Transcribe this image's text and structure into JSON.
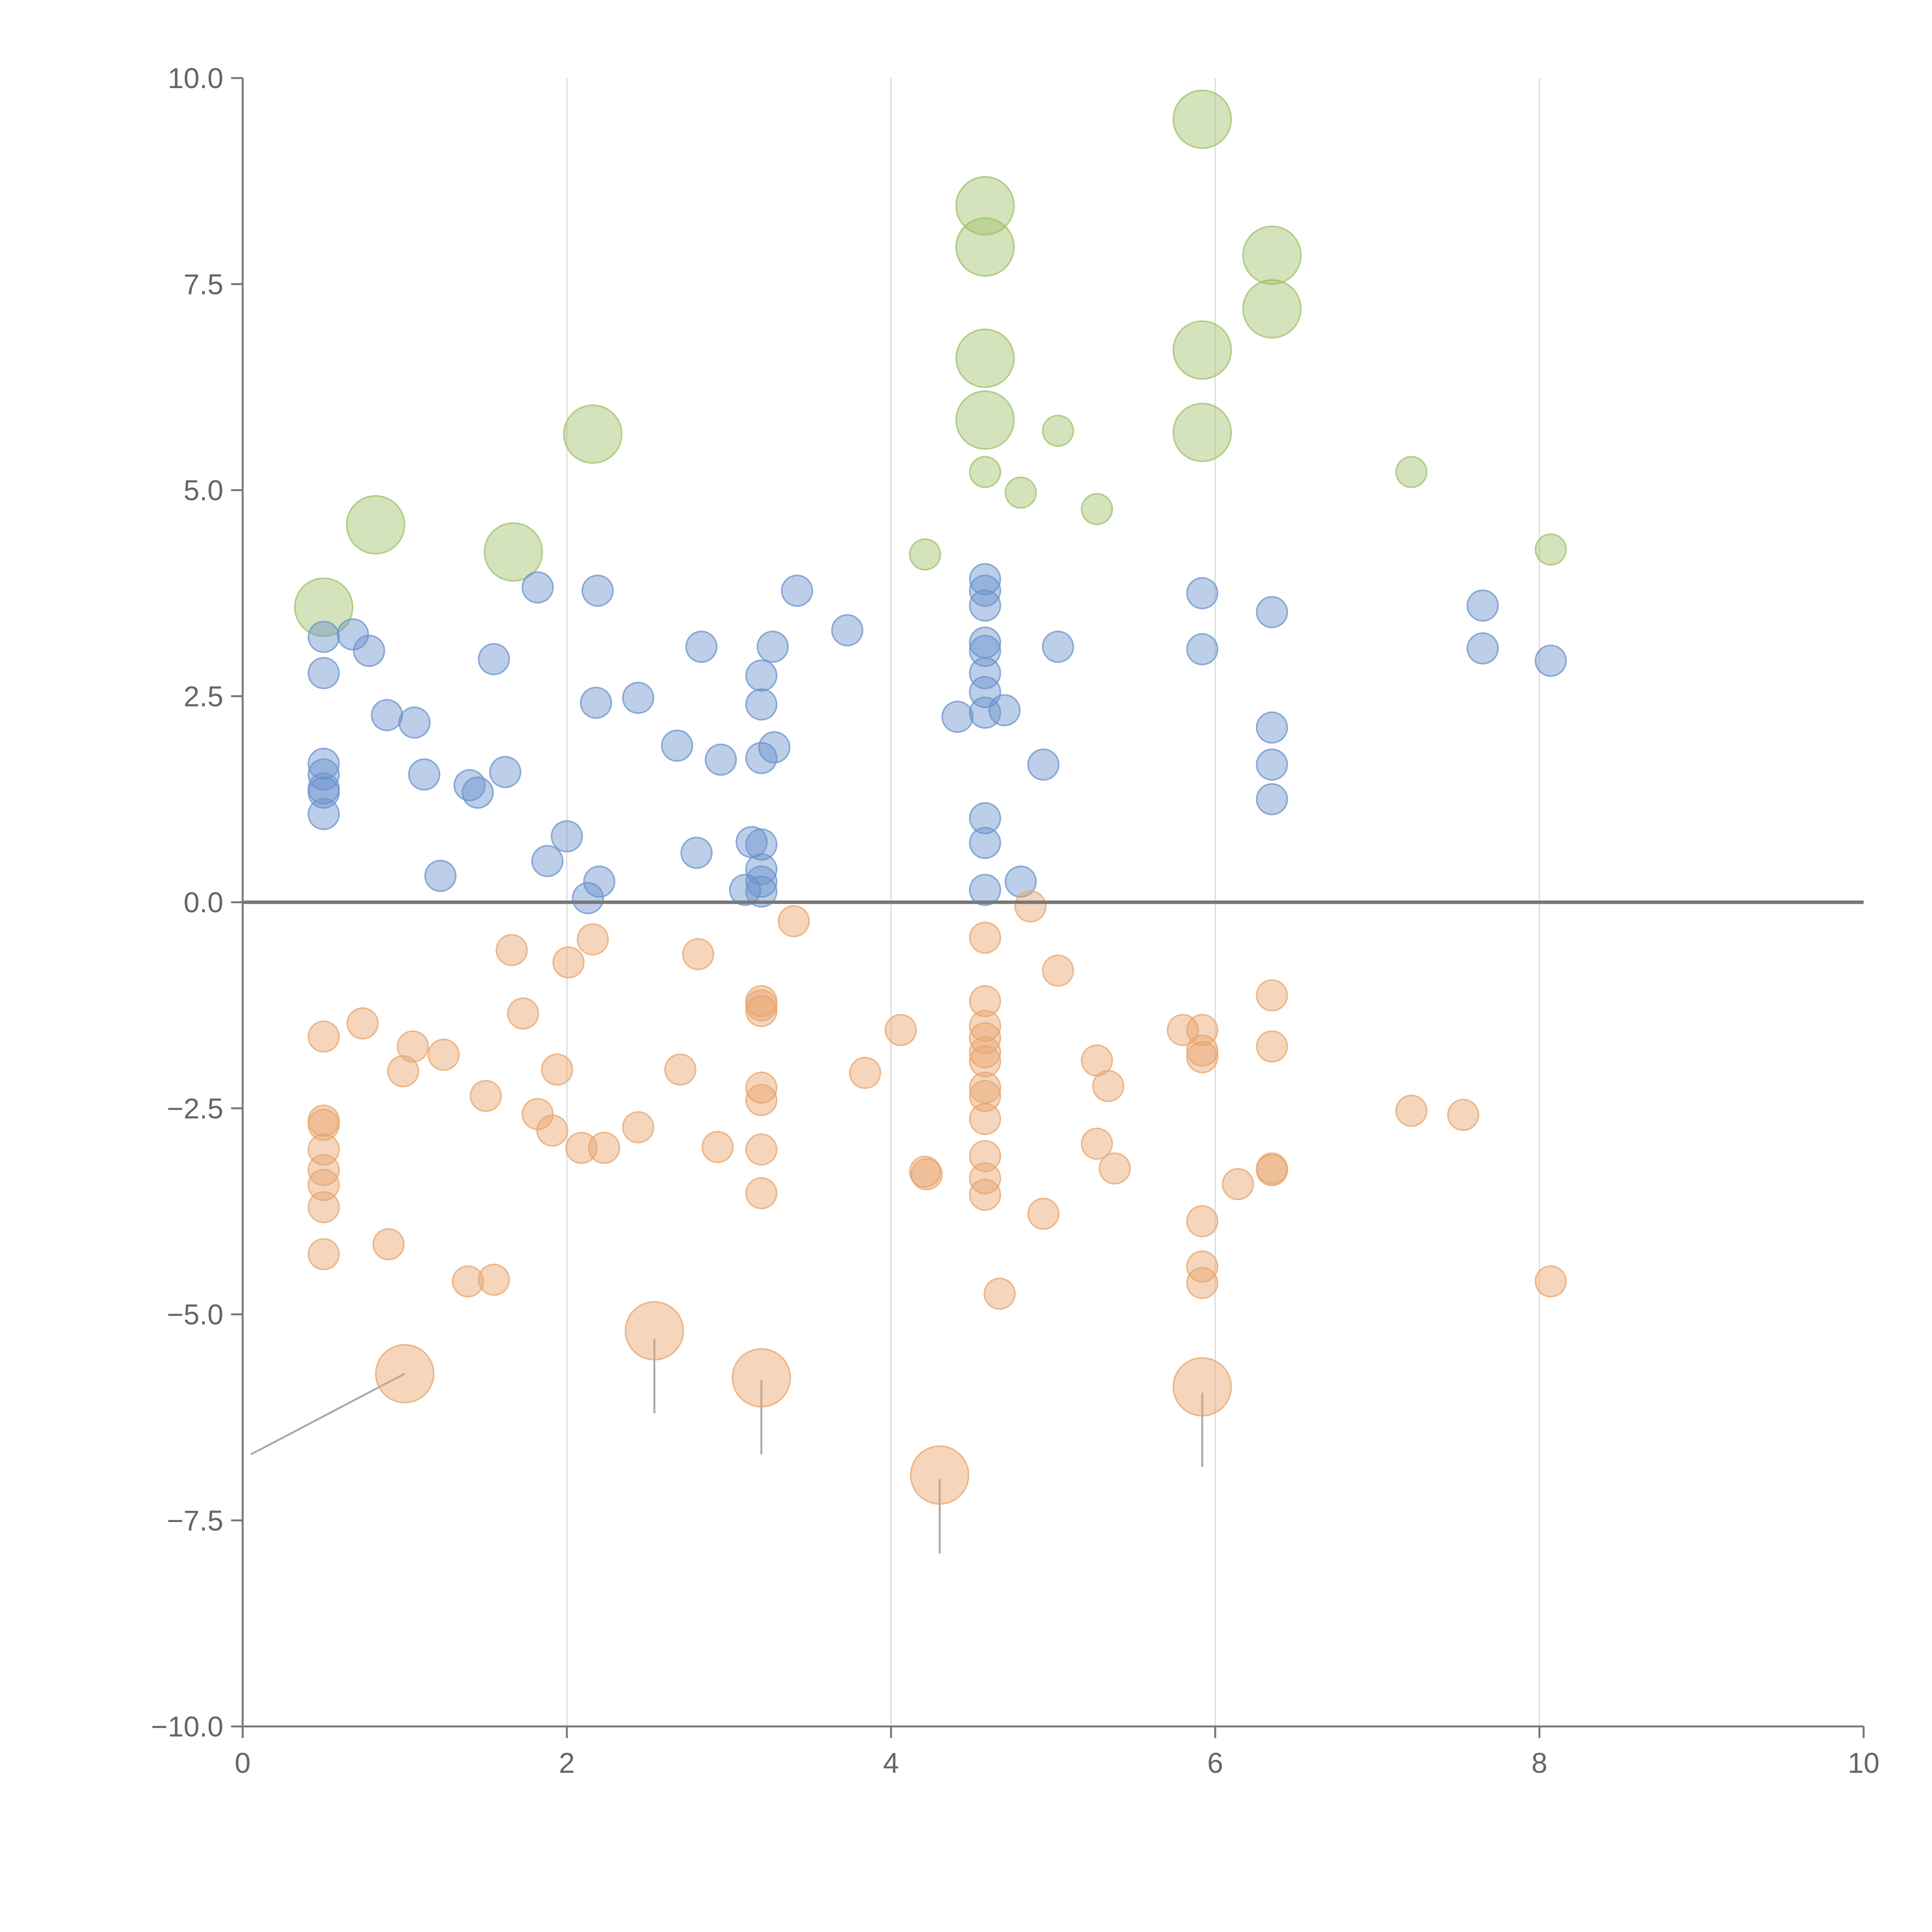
{
  "chart_data": {
    "type": "scatter",
    "title": "",
    "xlabel": "",
    "ylabel": "",
    "xlim": [
      0,
      10
    ],
    "ylim": [
      -10,
      10
    ],
    "x_ticks": [
      0,
      2,
      4,
      6,
      8,
      10
    ],
    "x_tick_labels": [
      "0",
      "2",
      "4",
      "6",
      "8",
      "10"
    ],
    "y_ticks": [
      10,
      7.5,
      5,
      2.5,
      0,
      -2.5,
      -5,
      -7.5,
      -10
    ],
    "y_tick_labels": [
      "10.0",
      "7.5",
      "5.0",
      "2.5",
      "0.0",
      "−2.5",
      "−5.0",
      "−7.5",
      "−10.0"
    ],
    "vertical_gridlines": [
      2,
      4,
      6,
      8
    ],
    "zero_line": 0,
    "series": [
      {
        "name": "green",
        "color": "#9fc26a",
        "points": [
          [
            5.92,
            9.5,
            1.7
          ],
          [
            4.58,
            8.45,
            1.7
          ],
          [
            4.58,
            7.95,
            1.7
          ],
          [
            6.35,
            7.85,
            1.7
          ],
          [
            6.35,
            7.2,
            1.7
          ],
          [
            5.92,
            6.7,
            1.7
          ],
          [
            4.58,
            6.6,
            1.7
          ],
          [
            4.58,
            5.85,
            1.7
          ],
          [
            5.92,
            5.7,
            1.7
          ],
          [
            2.16,
            5.68,
            1.7
          ],
          [
            0.82,
            4.58,
            1.7
          ],
          [
            1.67,
            4.25,
            1.7
          ],
          [
            0.5,
            3.58,
            1.7
          ],
          [
            5.03,
            5.72,
            0.9
          ],
          [
            4.58,
            5.22,
            0.9
          ],
          [
            4.8,
            4.97,
            0.9
          ],
          [
            5.27,
            4.77,
            0.9
          ],
          [
            7.21,
            5.22,
            0.9
          ],
          [
            4.21,
            4.22,
            0.9
          ],
          [
            8.07,
            4.28,
            0.9
          ]
        ]
      },
      {
        "name": "blue",
        "color": "#6b93cc",
        "points": [
          [
            1.82,
            3.82,
            0.9
          ],
          [
            2.19,
            3.78,
            0.9
          ],
          [
            3.42,
            3.78,
            0.9
          ],
          [
            3.73,
            3.3,
            0.9
          ],
          [
            0.5,
            3.22,
            0.9
          ],
          [
            0.68,
            3.25,
            0.9
          ],
          [
            0.78,
            3.05,
            0.9
          ],
          [
            1.55,
            2.95,
            0.9
          ],
          [
            2.83,
            3.1,
            0.9
          ],
          [
            3.27,
            3.1,
            0.9
          ],
          [
            0.5,
            2.78,
            0.9
          ],
          [
            3.2,
            2.75,
            0.9
          ],
          [
            2.18,
            2.42,
            0.9
          ],
          [
            2.44,
            2.48,
            0.9
          ],
          [
            3.2,
            2.4,
            0.9
          ],
          [
            0.89,
            2.27,
            0.9
          ],
          [
            1.06,
            2.18,
            0.9
          ],
          [
            2.68,
            1.9,
            0.9
          ],
          [
            2.95,
            1.73,
            0.9
          ],
          [
            3.2,
            1.75,
            0.9
          ],
          [
            3.28,
            1.88,
            0.9
          ],
          [
            0.5,
            1.68,
            0.9
          ],
          [
            0.5,
            1.55,
            0.9
          ],
          [
            0.5,
            1.38,
            0.9
          ],
          [
            0.5,
            1.33,
            0.9
          ],
          [
            0.5,
            1.07,
            0.9
          ],
          [
            1.12,
            1.55,
            0.9
          ],
          [
            1.4,
            1.42,
            0.9
          ],
          [
            1.45,
            1.33,
            0.9
          ],
          [
            1.62,
            1.58,
            0.9
          ],
          [
            2.0,
            0.8,
            0.9
          ],
          [
            1.88,
            0.5,
            0.9
          ],
          [
            2.8,
            0.6,
            0.9
          ],
          [
            3.14,
            0.73,
            0.9
          ],
          [
            3.2,
            0.7,
            0.9
          ],
          [
            3.2,
            0.4,
            0.9
          ],
          [
            3.2,
            0.25,
            0.9
          ],
          [
            3.1,
            0.15,
            0.9
          ],
          [
            3.2,
            0.13,
            0.9
          ],
          [
            2.2,
            0.25,
            0.9
          ],
          [
            2.13,
            0.05,
            0.9
          ],
          [
            1.22,
            0.32,
            0.9
          ],
          [
            4.58,
            3.92,
            0.9
          ],
          [
            4.58,
            3.78,
            0.9
          ],
          [
            4.58,
            3.6,
            0.9
          ],
          [
            4.58,
            3.15,
            0.9
          ],
          [
            4.58,
            3.05,
            0.9
          ],
          [
            4.58,
            2.78,
            0.9
          ],
          [
            4.58,
            2.55,
            0.9
          ],
          [
            4.58,
            2.3,
            0.9
          ],
          [
            4.41,
            2.25,
            0.9
          ],
          [
            4.7,
            2.33,
            0.9
          ],
          [
            5.03,
            3.1,
            0.9
          ],
          [
            4.94,
            1.67,
            0.9
          ],
          [
            4.58,
            1.02,
            0.9
          ],
          [
            4.58,
            0.72,
            0.9
          ],
          [
            4.58,
            0.15,
            0.9
          ],
          [
            4.8,
            0.25,
            0.9
          ],
          [
            5.92,
            3.75,
            0.9
          ],
          [
            5.92,
            3.07,
            0.9
          ],
          [
            6.35,
            3.52,
            0.9
          ],
          [
            6.35,
            2.12,
            0.9
          ],
          [
            6.35,
            1.67,
            0.9
          ],
          [
            6.35,
            1.25,
            0.9
          ],
          [
            7.65,
            3.6,
            0.9
          ],
          [
            7.65,
            3.08,
            0.9
          ],
          [
            8.07,
            2.93,
            0.9
          ]
        ]
      },
      {
        "name": "orange",
        "color": "#e8a56d",
        "points": [
          [
            3.4,
            -0.23,
            0.9
          ],
          [
            4.86,
            -0.05,
            0.9
          ],
          [
            4.58,
            -0.43,
            0.9
          ],
          [
            1.66,
            -0.58,
            0.9
          ],
          [
            2.16,
            -0.45,
            0.9
          ],
          [
            2.01,
            -0.73,
            0.9
          ],
          [
            2.81,
            -0.63,
            0.9
          ],
          [
            5.03,
            -0.83,
            0.9
          ],
          [
            1.73,
            -1.35,
            0.9
          ],
          [
            0.74,
            -1.47,
            0.9
          ],
          [
            0.5,
            -1.63,
            0.9
          ],
          [
            1.05,
            -1.75,
            0.9
          ],
          [
            0.99,
            -2.05,
            0.9
          ],
          [
            1.24,
            -1.85,
            0.9
          ],
          [
            1.94,
            -2.03,
            0.9
          ],
          [
            2.7,
            -2.03,
            0.9
          ],
          [
            3.2,
            -1.2,
            0.9
          ],
          [
            3.2,
            -1.25,
            0.9
          ],
          [
            3.2,
            -1.32,
            0.9
          ],
          [
            3.84,
            -2.07,
            0.9
          ],
          [
            4.06,
            -1.55,
            0.9
          ],
          [
            4.58,
            -1.2,
            0.9
          ],
          [
            4.58,
            -1.5,
            0.9
          ],
          [
            4.58,
            -1.65,
            0.9
          ],
          [
            4.58,
            -1.82,
            0.9
          ],
          [
            4.58,
            -1.93,
            0.9
          ],
          [
            4.58,
            -2.25,
            0.9
          ],
          [
            4.58,
            -2.35,
            0.9
          ],
          [
            4.58,
            -2.63,
            0.9
          ],
          [
            4.58,
            -3.08,
            0.9
          ],
          [
            4.58,
            -3.35,
            0.9
          ],
          [
            4.58,
            -3.55,
            0.9
          ],
          [
            5.27,
            -1.92,
            0.9
          ],
          [
            5.34,
            -2.23,
            0.9
          ],
          [
            5.27,
            -2.93,
            0.9
          ],
          [
            5.38,
            -3.23,
            0.9
          ],
          [
            5.8,
            -1.55,
            0.9
          ],
          [
            5.92,
            -1.55,
            0.9
          ],
          [
            5.92,
            -1.8,
            0.9
          ],
          [
            5.92,
            -1.88,
            0.9
          ],
          [
            6.35,
            -1.13,
            0.9
          ],
          [
            6.35,
            -1.75,
            0.9
          ],
          [
            6.14,
            -3.42,
            0.9
          ],
          [
            6.35,
            -3.23,
            0.9
          ],
          [
            6.35,
            -3.25,
            0.9
          ],
          [
            5.92,
            -3.87,
            0.9
          ],
          [
            5.92,
            -4.42,
            0.9
          ],
          [
            5.92,
            -4.62,
            0.9
          ],
          [
            0.5,
            -2.65,
            0.9
          ],
          [
            0.5,
            -2.7,
            0.9
          ],
          [
            0.5,
            -3.0,
            0.9
          ],
          [
            0.5,
            -3.25,
            0.9
          ],
          [
            0.5,
            -3.43,
            0.9
          ],
          [
            0.5,
            -3.7,
            0.9
          ],
          [
            0.5,
            -4.27,
            0.9
          ],
          [
            0.9,
            -4.15,
            0.9
          ],
          [
            1.5,
            -2.35,
            0.9
          ],
          [
            1.82,
            -2.57,
            0.9
          ],
          [
            1.91,
            -2.77,
            0.9
          ],
          [
            2.09,
            -2.98,
            0.9
          ],
          [
            2.23,
            -2.98,
            0.9
          ],
          [
            2.44,
            -2.73,
            0.9
          ],
          [
            2.93,
            -2.97,
            0.9
          ],
          [
            3.2,
            -2.25,
            0.9
          ],
          [
            3.2,
            -2.4,
            0.9
          ],
          [
            3.2,
            -3.0,
            0.9
          ],
          [
            3.2,
            -3.53,
            0.9
          ],
          [
            4.21,
            -3.27,
            0.9
          ],
          [
            4.22,
            -3.3,
            0.9
          ],
          [
            4.94,
            -3.78,
            0.9
          ],
          [
            4.67,
            -4.75,
            0.9
          ],
          [
            1.39,
            -4.6,
            0.9
          ],
          [
            1.55,
            -4.58,
            0.9
          ],
          [
            7.21,
            -2.53,
            0.9
          ],
          [
            7.53,
            -2.58,
            0.9
          ],
          [
            8.07,
            -4.6,
            0.9
          ],
          [
            1.0,
            -5.72,
            1.7
          ],
          [
            2.54,
            -5.2,
            1.7
          ],
          [
            3.2,
            -5.77,
            1.7
          ],
          [
            4.3,
            -6.95,
            1.7
          ],
          [
            5.92,
            -5.88,
            1.7
          ]
        ]
      }
    ],
    "leader_lines": [
      [
        [
          1.0,
          -5.72
        ],
        [
          0.05,
          -6.7
        ]
      ],
      [
        [
          2.54,
          -5.3
        ],
        [
          2.54,
          -6.2
        ]
      ],
      [
        [
          3.2,
          -5.8
        ],
        [
          3.2,
          -6.7
        ]
      ],
      [
        [
          4.3,
          -7.0
        ],
        [
          4.3,
          -7.9
        ]
      ],
      [
        [
          5.92,
          -5.95
        ],
        [
          5.92,
          -6.85
        ]
      ]
    ]
  }
}
